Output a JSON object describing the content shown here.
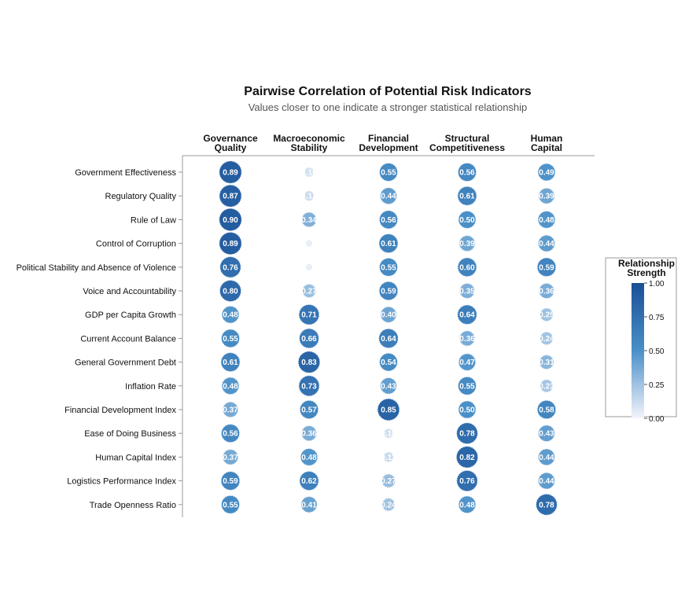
{
  "chart_data": {
    "type": "heatmap",
    "title": "Pairwise Correlation of Potential Risk Indicators",
    "subtitle": "Values closer to one indicate a stronger statistical relationship",
    "columns": [
      [
        "Governance",
        "Quality"
      ],
      [
        "Macroeconomic",
        "Stability"
      ],
      [
        "Financial",
        "Development"
      ],
      [
        "Structural",
        "Competitiveness"
      ],
      [
        "Human",
        "Capital"
      ]
    ],
    "rows": [
      "Government Effectiveness",
      "Regulatory Quality",
      "Rule of Law",
      "Control of Corruption",
      "Political Stability and Absence of Violence",
      "Voice and Accountability",
      "GDP per Capita Growth",
      "Current Account Balance",
      "General Government Debt",
      "Inflation Rate",
      "Financial Development Index",
      "Ease of Doing Business",
      "Human Capital Index",
      "Logistics Performance Index",
      "Trade Openness Ratio"
    ],
    "values": [
      [
        0.89,
        0.1,
        0.55,
        0.56,
        0.49
      ],
      [
        0.87,
        0.12,
        0.44,
        0.61,
        0.39
      ],
      [
        0.9,
        0.34,
        0.56,
        0.5,
        0.48
      ],
      [
        0.89,
        0.03,
        0.61,
        0.39,
        0.44
      ],
      [
        0.76,
        0.03,
        0.55,
        0.6,
        0.59
      ],
      [
        0.8,
        0.27,
        0.59,
        0.35,
        0.36
      ],
      [
        0.48,
        0.71,
        0.4,
        0.64,
        0.25
      ],
      [
        0.55,
        0.66,
        0.64,
        0.36,
        0.24
      ],
      [
        0.61,
        0.83,
        0.54,
        0.47,
        0.31
      ],
      [
        0.48,
        0.73,
        0.43,
        0.55,
        0.23
      ],
      [
        0.37,
        0.57,
        0.85,
        0.5,
        0.58
      ],
      [
        0.56,
        0.36,
        0.1,
        0.78,
        0.43
      ],
      [
        0.37,
        0.48,
        0.12,
        0.82,
        0.44
      ],
      [
        0.59,
        0.62,
        0.27,
        0.76,
        0.44
      ],
      [
        0.55,
        0.41,
        0.24,
        0.48,
        0.78
      ]
    ],
    "legend": {
      "title": [
        "Relationship",
        "Strength"
      ],
      "range": [
        0,
        1
      ],
      "ticks": [
        "1.00",
        "0.75",
        "0.50",
        "0.25",
        "0.00"
      ],
      "placement": "right"
    },
    "colors": {
      "low": "#f3f4fb",
      "mid": "#4a90c8",
      "high": "#1a4f96"
    }
  }
}
